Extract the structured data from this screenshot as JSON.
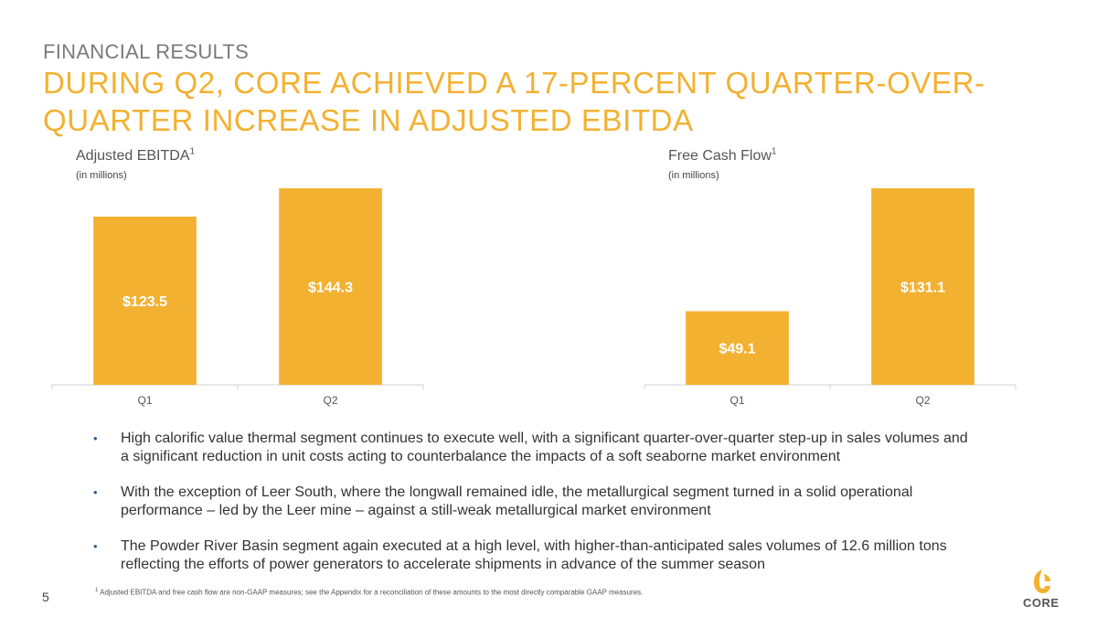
{
  "slide": {
    "kicker": "FINANCIAL RESULTS",
    "headline": "DURING Q2, CORE ACHIEVED A 17-PERCENT QUARTER-OVER-QUARTER INCREASE IN ADJUSTED EBITDA",
    "page_number": "5",
    "footnote_mark": "1",
    "footnote": "Adjusted EBITDA and free cash flow are non-GAAP measures; see the Appendix for a reconciliation of these amounts to the most directly comparable GAAP measures.",
    "logo_text": "CORE"
  },
  "colors": {
    "accent": "#F3B131",
    "gray_text": "#7a7a7a",
    "bullet": "#2e5c8a",
    "axis": "#d0d0d0"
  },
  "chart_data": [
    {
      "type": "bar",
      "title": "Adjusted EBITDA",
      "title_sup": "1",
      "unit": "(in millions)",
      "categories": [
        "Q1",
        "Q2"
      ],
      "values": [
        123.5,
        144.3
      ],
      "labels": [
        "$123.5",
        "$144.3"
      ],
      "ylim": [
        0,
        144.3
      ]
    },
    {
      "type": "bar",
      "title": "Free Cash Flow",
      "title_sup": "1",
      "unit": "(in millions)",
      "categories": [
        "Q1",
        "Q2"
      ],
      "values": [
        49.1,
        131.1
      ],
      "labels": [
        "$49.1",
        "$131.1"
      ],
      "ylim": [
        0,
        131.1
      ]
    }
  ],
  "bullets": [
    "High calorific value thermal segment continues to execute well, with a significant quarter-over-quarter step-up in sales volumes and a significant reduction in unit costs acting to counterbalance the impacts of a soft seaborne market environment",
    "With the exception of Leer South, where the longwall remained idle, the metallurgical segment turned in a solid operational performance – led by the Leer mine – against a still-weak metallurgical market environment",
    "The Powder River Basin segment again executed at a high level, with higher-than-anticipated sales volumes of 12.6 million tons reflecting the efforts of power generators to accelerate shipments in advance of the summer season"
  ]
}
